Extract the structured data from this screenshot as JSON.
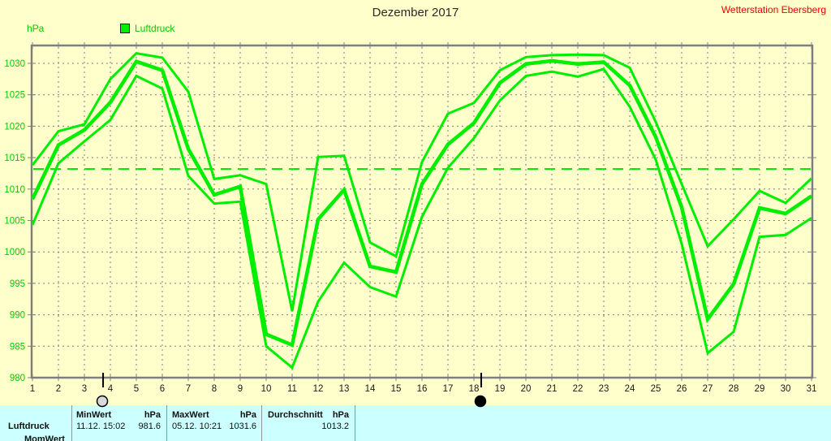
{
  "header": {
    "title": "Dezember 2017",
    "station": "Wetterstation Ebersberg"
  },
  "legend": {
    "label": "Luftdruck"
  },
  "chart": {
    "y_unit": "hPa"
  },
  "chart_data": {
    "type": "line",
    "title": "Dezember 2017",
    "ylabel": "hPa",
    "xlabel": "",
    "grid": true,
    "legend_position": "top-left",
    "legend_entries": [
      "Luftdruck"
    ],
    "x": [
      1,
      2,
      3,
      4,
      5,
      6,
      7,
      8,
      9,
      10,
      11,
      12,
      13,
      14,
      15,
      16,
      17,
      18,
      19,
      20,
      21,
      22,
      23,
      24,
      25,
      26,
      27,
      28,
      29,
      30,
      31
    ],
    "series": [
      {
        "name": "max",
        "values": [
          1013.8,
          1019.2,
          1020.3,
          1027.5,
          1031.6,
          1030.9,
          1025.5,
          1011.6,
          1012.2,
          1010.8,
          990.6,
          1015.1,
          1015.3,
          1001.5,
          999.3,
          1014.3,
          1022.0,
          1023.7,
          1028.9,
          1031.0,
          1031.3,
          1031.4,
          1031.3,
          1029.3,
          1020.7,
          1010.8,
          1000.9,
          1005.2,
          1009.7,
          1007.8,
          1011.7
        ]
      },
      {
        "name": "mean",
        "values": [
          1008.4,
          1017.0,
          1019.4,
          1023.8,
          1030.3,
          1028.9,
          1016.4,
          1009.1,
          1010.4,
          986.9,
          985.2,
          1005.2,
          1009.9,
          997.7,
          996.8,
          1010.8,
          1017.1,
          1020.5,
          1026.9,
          1029.9,
          1030.4,
          1029.9,
          1030.2,
          1026.5,
          1018.3,
          1007.1,
          989.3,
          994.9,
          1007.0,
          1006.1,
          1008.9
        ]
      },
      {
        "name": "min",
        "values": [
          1004.3,
          1014.1,
          1017.6,
          1021.0,
          1028.0,
          1026.0,
          1012.1,
          1007.7,
          1008.0,
          985.0,
          981.6,
          992.1,
          998.3,
          994.4,
          992.9,
          1005.6,
          1013.4,
          1018.1,
          1024.1,
          1028.0,
          1028.7,
          1027.9,
          1029.1,
          1023.1,
          1014.7,
          1001.3,
          983.9,
          987.3,
          1002.4,
          1002.7,
          1005.4
        ]
      }
    ],
    "average_line": 1013.2,
    "ylim": [
      980,
      1033
    ],
    "y_ticks": [
      980,
      985,
      990,
      995,
      1000,
      1005,
      1010,
      1015,
      1020,
      1025,
      1030
    ],
    "moon_markers": [
      {
        "day": 3.72,
        "phase": "full"
      },
      {
        "day": 18.28,
        "phase": "new"
      }
    ],
    "line_color": "#00ee00",
    "grid_color": "#808080",
    "axis_label_color": "#00cc00",
    "x_label_color": "#1a1a1a",
    "background_color": "#ffffcc"
  },
  "footer": {
    "row_label": "Luftdruck",
    "clipped_row_label": "MomWert",
    "min": {
      "header": "MinWert",
      "unit_header": "hPa",
      "datetime": "11.12.  15:02",
      "value": "981.6"
    },
    "max": {
      "header": "MaxWert",
      "unit_header": "hPa",
      "datetime": "05.12.  10:21",
      "value": "1031.6"
    },
    "avg": {
      "header": "Durchschnitt",
      "unit_header": "hPa",
      "value": "1013.2"
    }
  }
}
